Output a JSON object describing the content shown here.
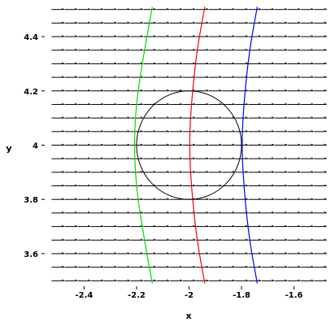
{
  "chart_data": {
    "type": "line",
    "xlabel": "x",
    "ylabel": "y",
    "xlim": [
      -2.55,
      -1.45
    ],
    "ylim": [
      3.48,
      4.52
    ],
    "x_ticks": [
      {
        "value": -2.4,
        "label": "-2.4"
      },
      {
        "value": -2.2,
        "label": "-2.2"
      },
      {
        "value": -2.0,
        "label": "-2"
      },
      {
        "value": -1.8,
        "label": "-1.8"
      },
      {
        "value": -1.6,
        "label": "-1.6"
      }
    ],
    "y_ticks": [
      {
        "value": 3.6,
        "label": "3.6"
      },
      {
        "value": 3.8,
        "label": "3.8"
      },
      {
        "value": 4.0,
        "label": "4"
      },
      {
        "value": 4.2,
        "label": "4.2"
      },
      {
        "value": 4.4,
        "label": "4.4"
      }
    ],
    "direction_field": {
      "rows_y": [
        3.5,
        3.55,
        3.6,
        3.65,
        3.7,
        3.75,
        3.8,
        3.85,
        3.9,
        3.95,
        4.0,
        4.05,
        4.1,
        4.15,
        4.2,
        4.25,
        4.3,
        4.35,
        4.4,
        4.45,
        4.5
      ],
      "columns_x": [
        -2.5,
        -2.45,
        -2.4,
        -2.35,
        -2.3,
        -2.25,
        -2.2,
        -2.15,
        -2.1,
        -2.05,
        -2.0,
        -1.95,
        -1.9,
        -1.85,
        -1.8,
        -1.75,
        -1.7,
        -1.65,
        -1.6,
        -1.55,
        -1.5
      ],
      "slope": 0,
      "color": "#000000"
    },
    "series": [
      {
        "color": "#00dd00",
        "x": [
          -2.14,
          -2.17,
          -2.2,
          -2.21,
          -2.2,
          -2.17,
          -2.14
        ],
        "y": [
          3.49,
          3.65,
          3.83,
          4.0,
          4.17,
          4.35,
          4.51
        ]
      },
      {
        "color": "#ff0000",
        "x": [
          -1.94,
          -1.97,
          -1.99,
          -2.0,
          -1.99,
          -1.97,
          -1.94
        ],
        "y": [
          3.49,
          3.65,
          3.83,
          4.0,
          4.17,
          4.35,
          4.51
        ]
      },
      {
        "color": "#0000ff",
        "x": [
          -1.74,
          -1.77,
          -1.79,
          -1.8,
          -1.79,
          -1.77,
          -1.74
        ],
        "y": [
          3.49,
          3.65,
          3.83,
          4.0,
          4.17,
          4.35,
          4.51
        ]
      }
    ],
    "circle": {
      "center": [
        -2.0,
        4.0
      ],
      "radius": 0.2,
      "color": "#000000"
    },
    "grid": false,
    "legend": "none"
  }
}
